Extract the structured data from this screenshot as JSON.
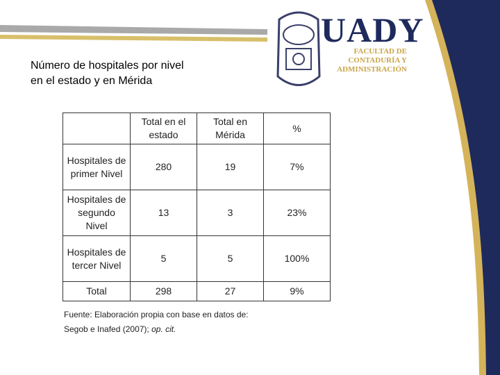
{
  "header": {
    "brand": "UADY",
    "faculty": [
      "FACULTAD DE",
      "CONTADURÍA Y",
      "ADMINISTRACIÓN"
    ]
  },
  "title": [
    "Número de hospitales por nivel",
    "en el estado y en Mérida"
  ],
  "table": {
    "columns": [
      "Total en el estado",
      "Total en Mérida",
      "%"
    ],
    "rows": [
      {
        "label": "Hospitales de primer Nivel",
        "values": [
          "280",
          "19",
          "7%"
        ]
      },
      {
        "label": "Hospitales de segundo Nivel",
        "values": [
          "13",
          "3",
          "23%"
        ]
      },
      {
        "label": "Hospitales de tercer Nivel",
        "values": [
          "5",
          "5",
          "100%"
        ]
      },
      {
        "label": "Total",
        "values": [
          "298",
          "27",
          "9%"
        ]
      }
    ]
  },
  "source": {
    "line1": "Fuente: Elaboración propia con base en datos de:",
    "line2": "Segob e Inafed (2007); ",
    "cite": "op. cit."
  }
}
